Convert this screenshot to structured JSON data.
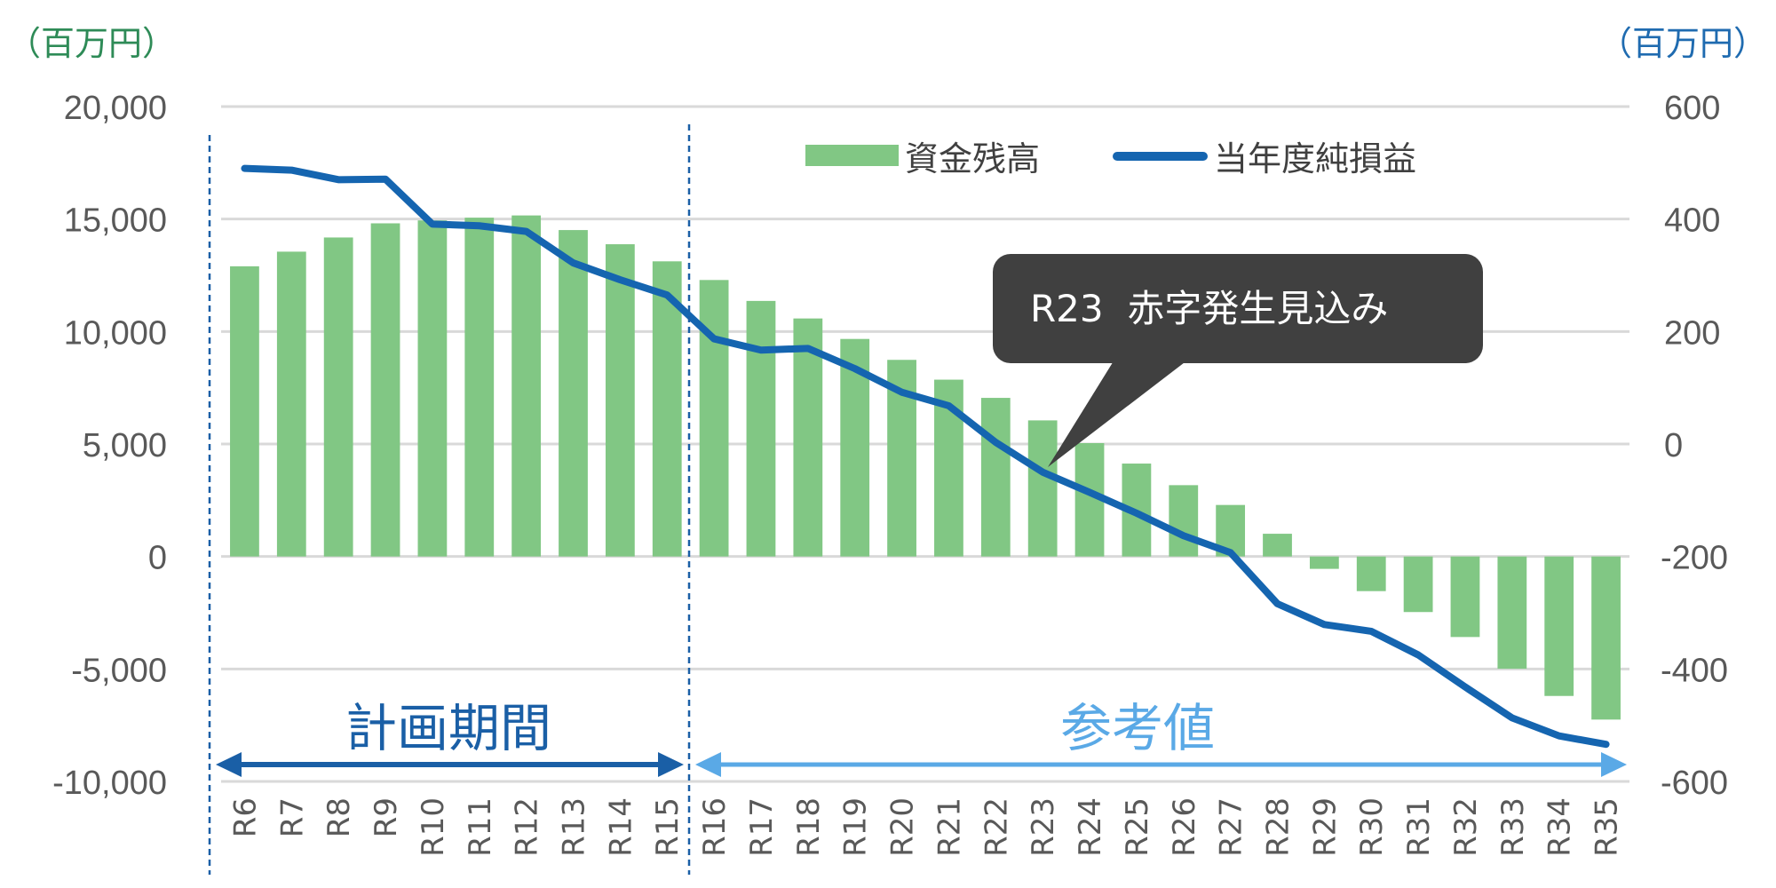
{
  "chart_data": {
    "type": "bar+line",
    "categories": [
      "R6",
      "R7",
      "R8",
      "R9",
      "R10",
      "R11",
      "R12",
      "R13",
      "R14",
      "R15",
      "R16",
      "R17",
      "R18",
      "R19",
      "R20",
      "R21",
      "R22",
      "R23",
      "R24",
      "R25",
      "R26",
      "R27",
      "R28",
      "R29",
      "R30",
      "R31",
      "R32",
      "R33",
      "R34",
      "R35"
    ],
    "series": [
      {
        "name": "資金残高",
        "type": "bar",
        "axis": "left",
        "color": "#81c784",
        "values": [
          12900,
          13550,
          14180,
          14810,
          14940,
          15060,
          15160,
          14510,
          13880,
          13120,
          12290,
          11360,
          10580,
          9670,
          8740,
          7860,
          7050,
          6050,
          5040,
          4130,
          3170,
          2290,
          1010,
          -550,
          -1540,
          -2470,
          -3580,
          -4990,
          -6200,
          -7250
        ]
      },
      {
        "name": "当年度純損益",
        "type": "line",
        "axis": "right",
        "color": "#1565b0",
        "values": [
          490,
          487,
          470,
          471,
          391,
          388,
          378,
          322,
          292,
          265,
          187,
          167,
          170,
          134,
          92,
          68,
          3,
          -50,
          -86,
          -123,
          -163,
          -193,
          -284,
          -321,
          -333,
          -375,
          -432,
          -487,
          -519,
          -534
        ]
      }
    ],
    "left_axis": {
      "unit_label": "（百万円）",
      "unit_color": "#2e8b57",
      "ylim": [
        -10000,
        20000
      ],
      "ticks": [
        {
          "value": 20000,
          "label": "20,000"
        },
        {
          "value": 15000,
          "label": "15,000"
        },
        {
          "value": 10000,
          "label": "10,000"
        },
        {
          "value": 5000,
          "label": "5,000"
        },
        {
          "value": 0,
          "label": "0"
        },
        {
          "value": -5000,
          "label": "-5,000"
        },
        {
          "value": -10000,
          "label": "-10,000"
        }
      ]
    },
    "right_axis": {
      "unit_label": "（百万円）",
      "unit_color": "#1f6bb0",
      "ylim": [
        -600,
        600
      ],
      "ticks": [
        {
          "value": 600,
          "label": "600"
        },
        {
          "value": 400,
          "label": "400"
        },
        {
          "value": 200,
          "label": "200"
        },
        {
          "value": 0,
          "label": "0"
        },
        {
          "value": -200,
          "label": "-200"
        },
        {
          "value": -400,
          "label": "-400"
        },
        {
          "value": -600,
          "label": "-600"
        }
      ]
    },
    "negative_tick_color": "#e00000",
    "grid": true,
    "legend": {
      "position": "top-right"
    },
    "annotations": {
      "callout": {
        "text": "R23  赤字発生見込み",
        "points_to": "R23"
      },
      "plan_period": {
        "label": "計画期間",
        "from": "R6",
        "to": "R15",
        "color": "#1a5fa6"
      },
      "reference": {
        "label": "参考値",
        "from": "R16",
        "to": "R35",
        "color": "#5aa9e6"
      }
    }
  }
}
